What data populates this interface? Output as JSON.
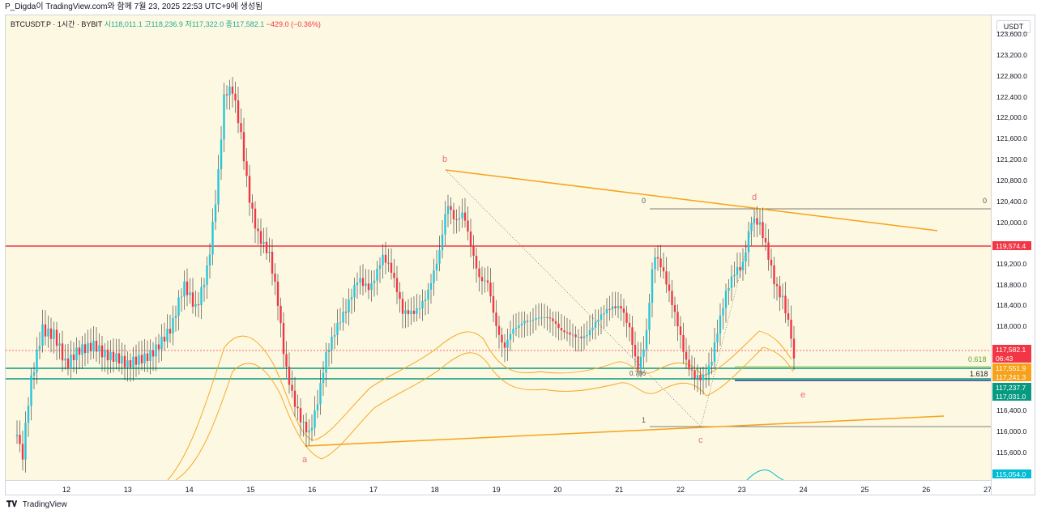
{
  "header": {
    "caption": "P_Digda이 TradingView.com와 함께 7월 23, 2025 22:53 UTC+9에 생성됨"
  },
  "symbol": {
    "name": "BTCUSDT.P · 1시간 · BYBIT",
    "open": "시118,011.1",
    "high": "고118,236.9",
    "low": "저117,322.0",
    "close": "종117,582.1",
    "change": "−429.0 (−0.36%)"
  },
  "price_axis": {
    "currency": "USDT",
    "ticks": [
      "123,600.0",
      "123,200.0",
      "122,800.0",
      "122,400.0",
      "122,000.0",
      "121,600.0",
      "121,200.0",
      "120,800.0",
      "120,400.0",
      "120,000.0",
      "119,200.0",
      "118,800.0",
      "118,400.0",
      "118,000.0",
      "116,400.0",
      "116,000.0",
      "115,600.0"
    ],
    "labels": [
      {
        "text": "119,574.4",
        "color": "#f23645"
      },
      {
        "text": "117,582.1",
        "color": "#f23645"
      },
      {
        "text": "06:43",
        "color": "#f23645"
      },
      {
        "text": "117,551.9",
        "color": "#f7a21b"
      },
      {
        "text": "117,241.3",
        "color": "#f7a21b"
      },
      {
        "text": "117,237.7",
        "color": "#089981"
      },
      {
        "text": "117,031.0",
        "color": "#089981"
      },
      {
        "text": "115,054.0",
        "color": "#00bcd4"
      }
    ]
  },
  "time_axis": {
    "ticks": [
      "12",
      "13",
      "14",
      "15",
      "16",
      "17",
      "18",
      "19",
      "20",
      "21",
      "22",
      "23",
      "24",
      "25",
      "26",
      "27"
    ]
  },
  "annotations": {
    "wave_a": "a",
    "wave_b": "b",
    "wave_c": "c",
    "wave_d": "d",
    "wave_e": "e",
    "fib_zero_left": "0",
    "fib_zero_right": "0",
    "fib_one": "1",
    "fib_0618": "0.618",
    "fib_1618": "1.618",
    "fib_0786": "0.786"
  },
  "colors": {
    "background": "#fdf8e1",
    "bull": "#26c6da",
    "bear": "#f23645",
    "trendline": "#f7a21b",
    "horizontal_red": "#f23645",
    "horizontal_green": "#089981"
  },
  "footer": {
    "brand": "TradingView"
  }
}
